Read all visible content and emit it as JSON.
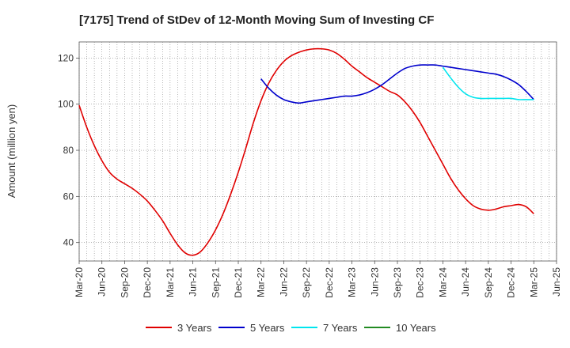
{
  "chart_data": {
    "type": "line",
    "title": "[7175]  Trend of StDev of 12-Month Moving Sum of Investing CF",
    "xlabel": "",
    "ylabel": "Amount (million yen)",
    "ylim": [
      32,
      127
    ],
    "yticks": [
      40,
      60,
      80,
      100,
      120
    ],
    "xlim": [
      "Mar-20",
      "Jun-25"
    ],
    "grid": true,
    "legend_position": "bottom",
    "x_tick_labels": [
      "Mar-20",
      "Jun-20",
      "Sep-20",
      "Dec-20",
      "Mar-21",
      "Jun-21",
      "Sep-21",
      "Dec-21",
      "Mar-22",
      "Jun-22",
      "Sep-22",
      "Dec-22",
      "Mar-23",
      "Jun-23",
      "Sep-23",
      "Dec-23",
      "Mar-24",
      "Jun-24",
      "Sep-24",
      "Dec-24",
      "Mar-25",
      "Jun-25"
    ],
    "series": [
      {
        "name": "3 Years",
        "color": "#e00000",
        "points": [
          [
            "Mar-20",
            99.5
          ],
          [
            "Apr-20",
            90
          ],
          [
            "May-20",
            82
          ],
          [
            "Jun-20",
            75.5
          ],
          [
            "Jul-20",
            70.5
          ],
          [
            "Aug-20",
            67.5
          ],
          [
            "Sep-20",
            65.5
          ],
          [
            "Oct-20",
            63.5
          ],
          [
            "Nov-20",
            61
          ],
          [
            "Dec-20",
            58
          ],
          [
            "Jan-21",
            54
          ],
          [
            "Feb-21",
            49.5
          ],
          [
            "Mar-21",
            44
          ],
          [
            "Apr-21",
            39
          ],
          [
            "May-21",
            35.5
          ],
          [
            "Jun-21",
            34.5
          ],
          [
            "Jul-21",
            36
          ],
          [
            "Aug-21",
            40
          ],
          [
            "Sep-21",
            45.5
          ],
          [
            "Oct-21",
            52.5
          ],
          [
            "Nov-21",
            61
          ],
          [
            "Dec-21",
            70.5
          ],
          [
            "Jan-22",
            81
          ],
          [
            "Feb-22",
            92
          ],
          [
            "Mar-22",
            101.5
          ],
          [
            "Apr-22",
            109
          ],
          [
            "May-22",
            114.5
          ],
          [
            "Jun-22",
            118.5
          ],
          [
            "Jul-22",
            121
          ],
          [
            "Aug-22",
            122.5
          ],
          [
            "Sep-22",
            123.5
          ],
          [
            "Oct-22",
            124
          ],
          [
            "Nov-22",
            124
          ],
          [
            "Dec-22",
            123.5
          ],
          [
            "Jan-23",
            122
          ],
          [
            "Feb-23",
            119.5
          ],
          [
            "Mar-23",
            116.5
          ],
          [
            "Apr-23",
            114
          ],
          [
            "May-23",
            111.5
          ],
          [
            "Jun-23",
            109.5
          ],
          [
            "Jul-23",
            107.5
          ],
          [
            "Aug-23",
            105.5
          ],
          [
            "Sep-23",
            104
          ],
          [
            "Oct-23",
            101
          ],
          [
            "Nov-23",
            97
          ],
          [
            "Dec-23",
            92
          ],
          [
            "Jan-24",
            86
          ],
          [
            "Feb-24",
            80
          ],
          [
            "Mar-24",
            74
          ],
          [
            "Apr-24",
            68
          ],
          [
            "May-24",
            63
          ],
          [
            "Jun-24",
            59
          ],
          [
            "Jul-24",
            56
          ],
          [
            "Aug-24",
            54.5
          ],
          [
            "Sep-24",
            54
          ],
          [
            "Oct-24",
            54.5
          ],
          [
            "Nov-24",
            55.5
          ],
          [
            "Dec-24",
            56
          ],
          [
            "Jan-25",
            56.5
          ],
          [
            "Feb-25",
            55.5
          ],
          [
            "Mar-25",
            52.5
          ]
        ]
      },
      {
        "name": "5 Years",
        "color": "#0000cc",
        "points": [
          [
            "Mar-22",
            111
          ],
          [
            "Apr-22",
            107
          ],
          [
            "May-22",
            104
          ],
          [
            "Jun-22",
            102
          ],
          [
            "Jul-22",
            101
          ],
          [
            "Aug-22",
            100.5
          ],
          [
            "Sep-22",
            101
          ],
          [
            "Oct-22",
            101.5
          ],
          [
            "Nov-22",
            102
          ],
          [
            "Dec-22",
            102.5
          ],
          [
            "Jan-23",
            103
          ],
          [
            "Feb-23",
            103.5
          ],
          [
            "Mar-23",
            103.5
          ],
          [
            "Apr-23",
            104
          ],
          [
            "May-23",
            105
          ],
          [
            "Jun-23",
            106.5
          ],
          [
            "Jul-23",
            108.5
          ],
          [
            "Aug-23",
            111
          ],
          [
            "Sep-23",
            113.5
          ],
          [
            "Oct-23",
            115.5
          ],
          [
            "Nov-23",
            116.5
          ],
          [
            "Dec-23",
            117
          ],
          [
            "Jan-24",
            117
          ],
          [
            "Feb-24",
            117
          ],
          [
            "Mar-24",
            116.5
          ],
          [
            "Apr-24",
            116
          ],
          [
            "May-24",
            115.5
          ],
          [
            "Jun-24",
            115
          ],
          [
            "Jul-24",
            114.5
          ],
          [
            "Aug-24",
            114
          ],
          [
            "Sep-24",
            113.5
          ],
          [
            "Oct-24",
            113
          ],
          [
            "Nov-24",
            112
          ],
          [
            "Dec-24",
            110.5
          ],
          [
            "Jan-25",
            108.5
          ],
          [
            "Feb-25",
            105.5
          ],
          [
            "Mar-25",
            102
          ]
        ]
      },
      {
        "name": "7 Years",
        "color": "#00e5ee",
        "points": [
          [
            "Mar-24",
            116
          ],
          [
            "Apr-24",
            111.5
          ],
          [
            "May-24",
            107.5
          ],
          [
            "Jun-24",
            104.5
          ],
          [
            "Jul-24",
            103
          ],
          [
            "Aug-24",
            102.5
          ],
          [
            "Sep-24",
            102.5
          ],
          [
            "Oct-24",
            102.5
          ],
          [
            "Nov-24",
            102.5
          ],
          [
            "Dec-24",
            102.5
          ],
          [
            "Jan-25",
            102
          ],
          [
            "Feb-25",
            102
          ],
          [
            "Mar-25",
            102
          ]
        ]
      },
      {
        "name": "10 Years",
        "color": "#228b22",
        "points": []
      }
    ]
  }
}
